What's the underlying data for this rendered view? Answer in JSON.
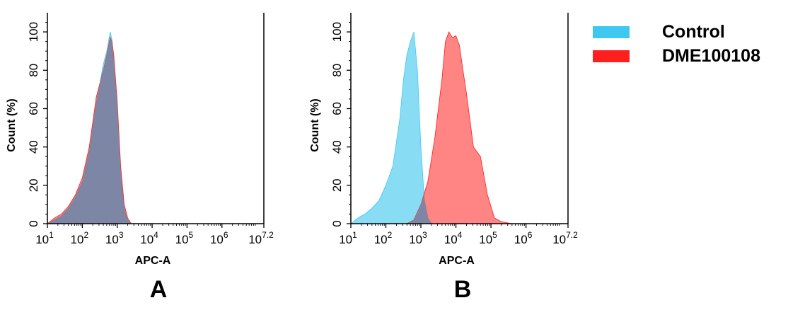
{
  "chart_data": [
    {
      "type": "area",
      "panel": "A",
      "xlabel": "APC-A",
      "ylabel": "Count  (%)",
      "x_scale": "log10",
      "xlim": [
        1,
        7.2
      ],
      "ylim": [
        0,
        110
      ],
      "x_ticks": [
        {
          "base": "10",
          "exp": "1"
        },
        {
          "base": "10",
          "exp": "2"
        },
        {
          "base": "10",
          "exp": "3"
        },
        {
          "base": "10",
          "exp": "4"
        },
        {
          "base": "10",
          "exp": "5"
        },
        {
          "base": "10",
          "exp": "6"
        },
        {
          "base": "10",
          "exp": "7.2"
        }
      ],
      "y_ticks": [
        "0",
        "20",
        "40",
        "60",
        "80",
        "100"
      ],
      "series": [
        {
          "name": "Control",
          "color": "#3fc8ef",
          "x": [
            1,
            1.2,
            1.4,
            1.6,
            1.8,
            2.0,
            2.2,
            2.4,
            2.6,
            2.7,
            2.8,
            2.85,
            2.9,
            3.0,
            3.1,
            3.2,
            3.3,
            3.4,
            3.5
          ],
          "y": [
            0,
            2,
            4,
            8,
            14,
            22,
            38,
            63,
            83,
            90,
            100,
            96,
            86,
            62,
            28,
            8,
            2,
            0,
            0
          ]
        },
        {
          "name": "DME100108",
          "color": "#ff1f1f",
          "x": [
            1,
            1.2,
            1.4,
            1.6,
            1.8,
            2.0,
            2.2,
            2.4,
            2.6,
            2.7,
            2.8,
            2.85,
            2.9,
            3.0,
            3.1,
            3.2,
            3.3,
            3.4,
            3.5
          ],
          "y": [
            0,
            3,
            5,
            9,
            15,
            24,
            40,
            66,
            80,
            88,
            97,
            95,
            88,
            64,
            30,
            10,
            3,
            0,
            0
          ]
        }
      ]
    },
    {
      "type": "area",
      "panel": "B",
      "xlabel": "APC-A",
      "ylabel": "Count  (%)",
      "x_scale": "log10",
      "xlim": [
        1,
        7.2
      ],
      "ylim": [
        0,
        110
      ],
      "x_ticks": [
        {
          "base": "10",
          "exp": "1"
        },
        {
          "base": "10",
          "exp": "2"
        },
        {
          "base": "10",
          "exp": "3"
        },
        {
          "base": "10",
          "exp": "4"
        },
        {
          "base": "10",
          "exp": "5"
        },
        {
          "base": "10",
          "exp": "6"
        },
        {
          "base": "10",
          "exp": "7.2"
        }
      ],
      "y_ticks": [
        "0",
        "20",
        "40",
        "60",
        "80",
        "100"
      ],
      "series": [
        {
          "name": "Control",
          "color": "#3fc8ef",
          "x": [
            1,
            1.2,
            1.4,
            1.6,
            1.8,
            2.0,
            2.2,
            2.4,
            2.5,
            2.6,
            2.7,
            2.8,
            2.9,
            3.0,
            3.1,
            3.2,
            3.3,
            3.4
          ],
          "y": [
            0,
            3,
            5,
            8,
            12,
            20,
            30,
            55,
            75,
            88,
            95,
            100,
            80,
            40,
            12,
            3,
            0,
            0
          ]
        },
        {
          "name": "DME100108",
          "color": "#ff1f1f",
          "x": [
            2.6,
            2.8,
            3.0,
            3.2,
            3.4,
            3.6,
            3.7,
            3.8,
            3.9,
            4.0,
            4.1,
            4.2,
            4.3,
            4.5,
            4.7,
            4.9,
            5.1,
            5.3,
            5.6,
            6.0
          ],
          "y": [
            0,
            2,
            10,
            22,
            45,
            75,
            95,
            100,
            97,
            98,
            93,
            80,
            68,
            40,
            35,
            15,
            3,
            1,
            0,
            0
          ]
        }
      ]
    }
  ],
  "legend": [
    {
      "label": "Control",
      "color": "#3fc8ef"
    },
    {
      "label": "DME100108",
      "color": "#ff1f1f"
    }
  ],
  "panel_labels": [
    "A",
    "B"
  ],
  "overlap_color": "#7a87a6"
}
